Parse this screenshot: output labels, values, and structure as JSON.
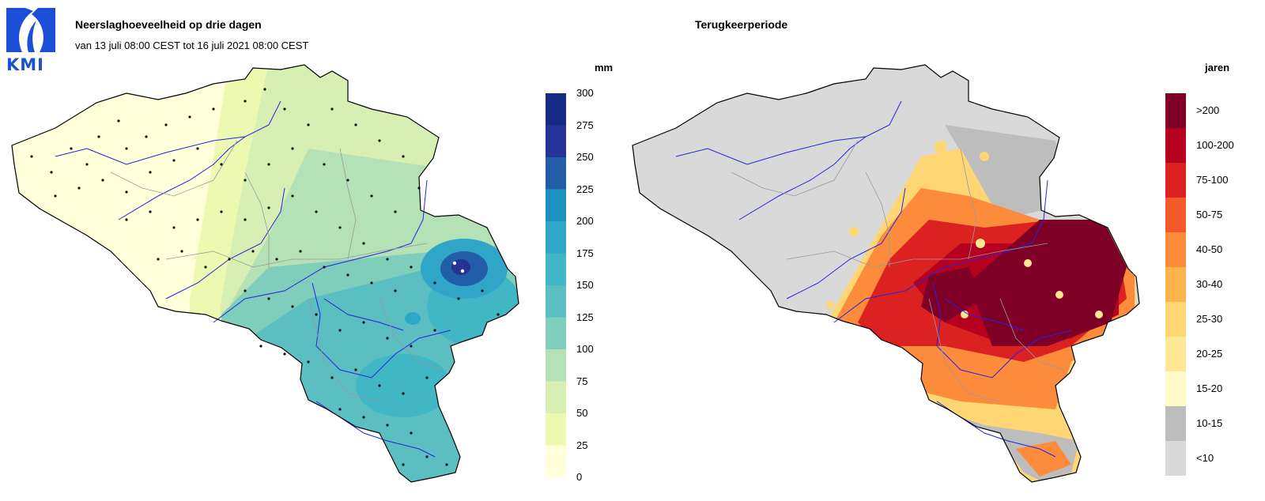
{
  "logo": {
    "text": "KMI",
    "color": "#1a4fd6"
  },
  "left_panel": {
    "title": "Neerslaghoeveelheid op drie dagen",
    "subtitle": "van 13 juli 08:00 CEST tot 16 juli 2021 08:00 CEST",
    "unit": "mm",
    "legend": {
      "labels": [
        "300",
        "275",
        "250",
        "225",
        "200",
        "175",
        "150",
        "125",
        "100",
        "75",
        "50",
        "25",
        "0"
      ],
      "colors": [
        "#081d58",
        "#172a86",
        "#253494",
        "#225ea8",
        "#1d91c0",
        "#2fa5c8",
        "#41b6c4",
        "#5bbfc2",
        "#7fcdbb",
        "#b5e1b6",
        "#d8efb3",
        "#edf8b1",
        "#ffffd9"
      ]
    }
  },
  "right_panel": {
    "title": "Terugkeerperiode",
    "unit": "jaren",
    "legend": {
      "labels": [
        ">200",
        "100-200",
        "75-100",
        "50-75",
        "40-50",
        "30-40",
        "25-30",
        "20-25",
        "15-20",
        "10-15",
        "<10"
      ],
      "colors": [
        "#7f0026",
        "#b5001f",
        "#dc2121",
        "#f5582a",
        "#fc8c3c",
        "#fdb44c",
        "#fed673",
        "#fee795",
        "#fffac8",
        "#bdbdbd",
        "#d9d9d9"
      ]
    }
  }
}
